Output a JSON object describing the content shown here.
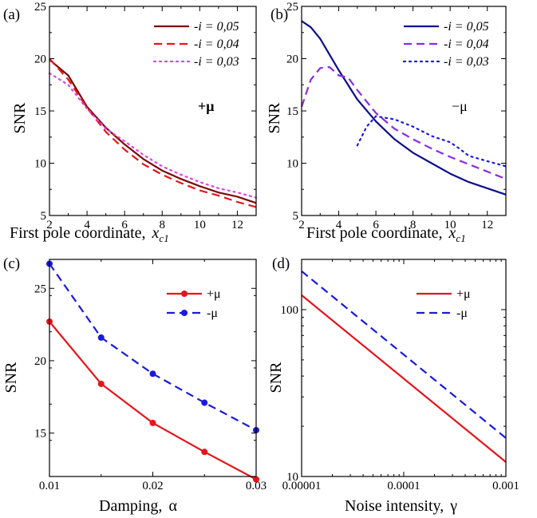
{
  "chart_data": [
    {
      "panel": "(a)",
      "type": "line",
      "xlabel": "First pole coordinate,",
      "xlabel_symbol": "x",
      "xlabel_sub": "c1",
      "ylabel": "SNR",
      "xlim": [
        2,
        13
      ],
      "ylim": [
        5,
        25
      ],
      "x_ticks": [
        "2",
        "4",
        "6",
        "8",
        "10",
        "12"
      ],
      "y_ticks": [
        "5",
        "10",
        "15",
        "20",
        "25"
      ],
      "annotation": "+μ",
      "legend_position": "top-right",
      "series": [
        {
          "name": "-i = 0,05",
          "color": "#7a0a0a",
          "style": "solid",
          "x": [
            2,
            3,
            4,
            5,
            6,
            7,
            8,
            9,
            10,
            11,
            12,
            13
          ],
          "y": [
            19.9,
            18.4,
            15.4,
            13.4,
            11.8,
            10.4,
            9.3,
            8.5,
            7.8,
            7.2,
            6.8,
            6.2
          ]
        },
        {
          "name": "-i = 0,04",
          "color": "#e8141b",
          "style": "dashed",
          "x": [
            2,
            3,
            4,
            5,
            6,
            7,
            8,
            9,
            10,
            11,
            12,
            13
          ],
          "y": [
            20.0,
            18.0,
            15.3,
            13.0,
            11.3,
            9.9,
            8.9,
            8.1,
            7.4,
            6.9,
            6.3,
            5.8
          ]
        },
        {
          "name": "-i = 0,03",
          "color": "#e040e8",
          "style": "dotted",
          "x": [
            2,
            3,
            4,
            5,
            6,
            7,
            8,
            9,
            10,
            11,
            12,
            13
          ],
          "y": [
            18.6,
            17.5,
            15.2,
            13.3,
            12.1,
            10.8,
            9.7,
            8.9,
            8.2,
            7.6,
            7.2,
            6.7
          ]
        }
      ]
    },
    {
      "panel": "(b)",
      "type": "line",
      "xlabel": "First pole coordinate,",
      "xlabel_symbol": "x",
      "xlabel_sub": "c1",
      "ylabel": "SNR",
      "xlim": [
        2,
        13
      ],
      "ylim": [
        5,
        25
      ],
      "x_ticks": [
        "2",
        "4",
        "6",
        "8",
        "10",
        "12"
      ],
      "y_ticks": [
        "5",
        "10",
        "15",
        "20",
        "25"
      ],
      "annotation": "−μ",
      "legend_position": "top-right",
      "series": [
        {
          "name": "-i = 0,05",
          "color": "#0d0d8c",
          "style": "solid",
          "x": [
            2,
            2.5,
            3,
            4,
            5,
            6,
            7,
            8,
            9,
            10,
            11,
            12,
            13
          ],
          "y": [
            23.6,
            23.0,
            21.9,
            18.9,
            16.1,
            14.0,
            12.3,
            11.0,
            10.0,
            9.0,
            8.2,
            7.6,
            7.0
          ]
        },
        {
          "name": "-i = 0,04",
          "color": "#8a2be2",
          "style": "dashed",
          "x": [
            2,
            2.5,
            3,
            3.5,
            4,
            4.5,
            5,
            6,
            7,
            8,
            9,
            10,
            11,
            12,
            13
          ],
          "y": [
            15.4,
            18.0,
            19.1,
            19.2,
            18.4,
            18.2,
            17.0,
            14.8,
            13.3,
            12.3,
            11.4,
            10.6,
            9.9,
            9.2,
            8.5
          ]
        },
        {
          "name": "-i = 0,03",
          "color": "#1a1adc",
          "style": "dotted",
          "x": [
            5,
            5.5,
            6,
            7,
            8,
            9,
            10,
            10.5,
            11,
            12,
            13
          ],
          "y": [
            11.7,
            13.5,
            14.5,
            14.2,
            13.5,
            12.6,
            12.0,
            11.4,
            10.7,
            10.2,
            9.7
          ]
        }
      ]
    },
    {
      "panel": "(c)",
      "type": "line",
      "xlabel": "Damping,",
      "xlabel_symbol": "α",
      "ylabel": "SNR",
      "xlim": [
        0.01,
        0.03
      ],
      "ylim": [
        12,
        27
      ],
      "x_ticks": [
        "0.01",
        "0.02",
        "0.03"
      ],
      "y_ticks": [
        "15",
        "20",
        "25"
      ],
      "legend_position": "top-right",
      "series": [
        {
          "name": "+μ",
          "color": "#e8141b",
          "style": "solid",
          "x": [
            0.01,
            0.015,
            0.02,
            0.025,
            0.03
          ],
          "y": [
            22.7,
            18.4,
            15.7,
            13.7,
            11.8
          ]
        },
        {
          "name": "-μ",
          "color": "#1a1adc",
          "style": "dashed",
          "x": [
            0.01,
            0.015,
            0.02,
            0.025,
            0.03
          ],
          "y": [
            26.7,
            21.6,
            19.1,
            17.1,
            15.2
          ]
        }
      ]
    },
    {
      "panel": "(d)",
      "type": "line",
      "xlabel": "Noise intensity,",
      "xlabel_symbol": "γ",
      "ylabel": "SNR",
      "x_scale": "log",
      "y_scale": "log",
      "xlim": [
        1e-05,
        0.001
      ],
      "ylim": [
        10,
        200
      ],
      "x_ticks": [
        "0.00001",
        "0.0001",
        "0.001"
      ],
      "y_ticks": [
        "10",
        "100"
      ],
      "legend_position": "top-right",
      "series": [
        {
          "name": "+μ",
          "color": "#e8141b",
          "style": "solid",
          "x": [
            1e-05,
            0.001
          ],
          "y": [
            122,
            12.2
          ]
        },
        {
          "name": "-μ",
          "color": "#1a1adc",
          "style": "dashed",
          "x": [
            1e-05,
            0.001
          ],
          "y": [
            170,
            17
          ]
        }
      ]
    }
  ]
}
